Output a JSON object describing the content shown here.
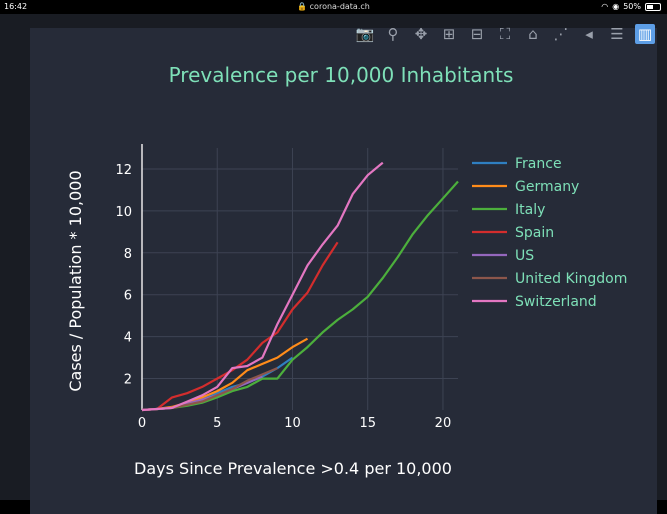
{
  "status_bar": {
    "time": "16:42",
    "url": "corona-data.ch",
    "battery": "50%",
    "battery_level": 0.5
  },
  "toolbar": {
    "icons": [
      "camera-icon",
      "zoom-icon",
      "pan-icon",
      "zoom-in-icon",
      "zoom-out-icon",
      "autoscale-icon",
      "home-icon",
      "spike-lines-icon",
      "hover-closest-icon",
      "hover-compare-icon",
      "plotly-logo-icon"
    ]
  },
  "chart_data": {
    "type": "line",
    "title": "Prevalence per 10,000 Inhabitants",
    "xlabel": "Days Since Prevalence >0.4 per 10,000",
    "ylabel": "Cases / Population * 10,000",
    "xlim": [
      0,
      21
    ],
    "ylim": [
      0.5,
      13
    ],
    "x_ticks": [
      0,
      5,
      10,
      15,
      20
    ],
    "y_ticks": [
      2,
      4,
      6,
      8,
      10,
      12
    ],
    "grid": true,
    "legend": "right",
    "series": [
      {
        "name": "France",
        "color": "#2f7fc1",
        "x": [
          0,
          1,
          2,
          3,
          4,
          5,
          6,
          7,
          8,
          9,
          10
        ],
        "y": [
          0.5,
          0.55,
          0.6,
          0.8,
          1.1,
          1.3,
          1.6,
          1.8,
          2.1,
          2.5,
          3.0
        ]
      },
      {
        "name": "Germany",
        "color": "#ff8c1a",
        "x": [
          0,
          1,
          2,
          3,
          4,
          5,
          6,
          7,
          8,
          9,
          10,
          11
        ],
        "y": [
          0.5,
          0.55,
          0.65,
          0.85,
          1.1,
          1.4,
          1.8,
          2.4,
          2.7,
          3.0,
          3.5,
          3.9
        ]
      },
      {
        "name": "Italy",
        "color": "#4caf3c",
        "x": [
          0,
          1,
          2,
          3,
          4,
          5,
          6,
          7,
          8,
          9,
          10,
          11,
          12,
          13,
          14,
          15,
          16,
          17,
          18,
          19,
          20,
          21
        ],
        "y": [
          0.5,
          0.55,
          0.6,
          0.7,
          0.85,
          1.1,
          1.4,
          1.6,
          2.0,
          2.0,
          2.9,
          3.5,
          4.2,
          4.8,
          5.3,
          5.9,
          6.8,
          7.8,
          8.9,
          9.8,
          10.6,
          11.4
        ]
      },
      {
        "name": "Spain",
        "color": "#d32d2d",
        "x": [
          0,
          1,
          2,
          3,
          4,
          5,
          6,
          7,
          8,
          9,
          10,
          11,
          12,
          13
        ],
        "y": [
          0.5,
          0.55,
          1.1,
          1.3,
          1.6,
          2.0,
          2.4,
          2.9,
          3.7,
          4.2,
          5.3,
          6.1,
          7.4,
          8.5
        ]
      },
      {
        "name": "US",
        "color": "#9467bd",
        "x": [
          0,
          1,
          2,
          3,
          4,
          5,
          6,
          7,
          8
        ],
        "y": [
          0.5,
          0.55,
          0.6,
          0.8,
          1.0,
          1.2,
          1.5,
          1.8,
          2.1
        ]
      },
      {
        "name": "United Kingdom",
        "color": "#8c564b",
        "x": [
          0,
          1,
          2,
          3,
          4,
          5,
          6,
          7,
          8,
          9
        ],
        "y": [
          0.5,
          0.55,
          0.6,
          0.75,
          0.9,
          1.2,
          1.5,
          1.9,
          2.2,
          2.5
        ]
      },
      {
        "name": "Switzerland",
        "color": "#e377c2",
        "x": [
          0,
          1,
          2,
          3,
          4,
          5,
          6,
          7,
          8,
          9,
          10,
          11,
          12,
          13,
          14,
          15,
          16
        ],
        "y": [
          0.5,
          0.55,
          0.6,
          0.9,
          1.2,
          1.6,
          2.5,
          2.6,
          3.0,
          4.6,
          6.0,
          7.4,
          8.4,
          9.3,
          10.8,
          11.7,
          12.3
        ]
      }
    ]
  }
}
